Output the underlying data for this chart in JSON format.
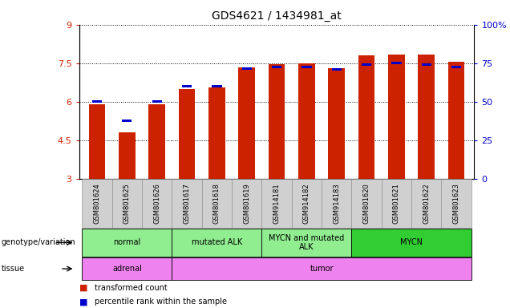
{
  "title": "GDS4621 / 1434981_at",
  "samples": [
    "GSM801624",
    "GSM801625",
    "GSM801626",
    "GSM801617",
    "GSM801618",
    "GSM801619",
    "GSM914181",
    "GSM914182",
    "GSM914183",
    "GSM801620",
    "GSM801621",
    "GSM801622",
    "GSM801623"
  ],
  "red_values": [
    5.9,
    4.8,
    5.9,
    6.5,
    6.55,
    7.35,
    7.45,
    7.5,
    7.3,
    7.8,
    7.85,
    7.85,
    7.55
  ],
  "blue_values": [
    6.0,
    5.25,
    6.0,
    6.6,
    6.6,
    7.3,
    7.35,
    7.35,
    7.25,
    7.45,
    7.5,
    7.45,
    7.35
  ],
  "ylim_left": [
    3,
    9
  ],
  "yticks_left": [
    3,
    4.5,
    6,
    7.5,
    9
  ],
  "ytick_labels_left": [
    "3",
    "4.5",
    "6",
    "7.5",
    "9"
  ],
  "ylim_right": [
    0,
    100
  ],
  "yticks_right": [
    0,
    25,
    50,
    75,
    100
  ],
  "ytick_labels_right": [
    "0",
    "25",
    "50",
    "75",
    "100%"
  ],
  "red_color": "#CC2200",
  "blue_color": "#0000CC",
  "bar_width": 0.55,
  "genotype_groups": [
    {
      "label": "normal",
      "start": 0,
      "end": 3,
      "color": "#90EE90"
    },
    {
      "label": "mutated ALK",
      "start": 3,
      "end": 6,
      "color": "#90EE90"
    },
    {
      "label": "MYCN and mutated\nALK",
      "start": 6,
      "end": 9,
      "color": "#90EE90"
    },
    {
      "label": "MYCN",
      "start": 9,
      "end": 13,
      "color": "#32CD32"
    }
  ],
  "tissue_groups": [
    {
      "label": "adrenal",
      "start": 0,
      "end": 3,
      "color": "#EE82EE"
    },
    {
      "label": "tumor",
      "start": 3,
      "end": 13,
      "color": "#EE82EE"
    }
  ],
  "axis_label_color_left": "#CC2200",
  "axis_label_color_right": "#0000CC",
  "bar_bottom": 3.0,
  "xtick_bg_color": "#d0d0d0",
  "legend_red_label": "transformed count",
  "legend_blue_label": "percentile rank within the sample",
  "geno_label": "genotype/variation",
  "tissue_label": "tissue"
}
